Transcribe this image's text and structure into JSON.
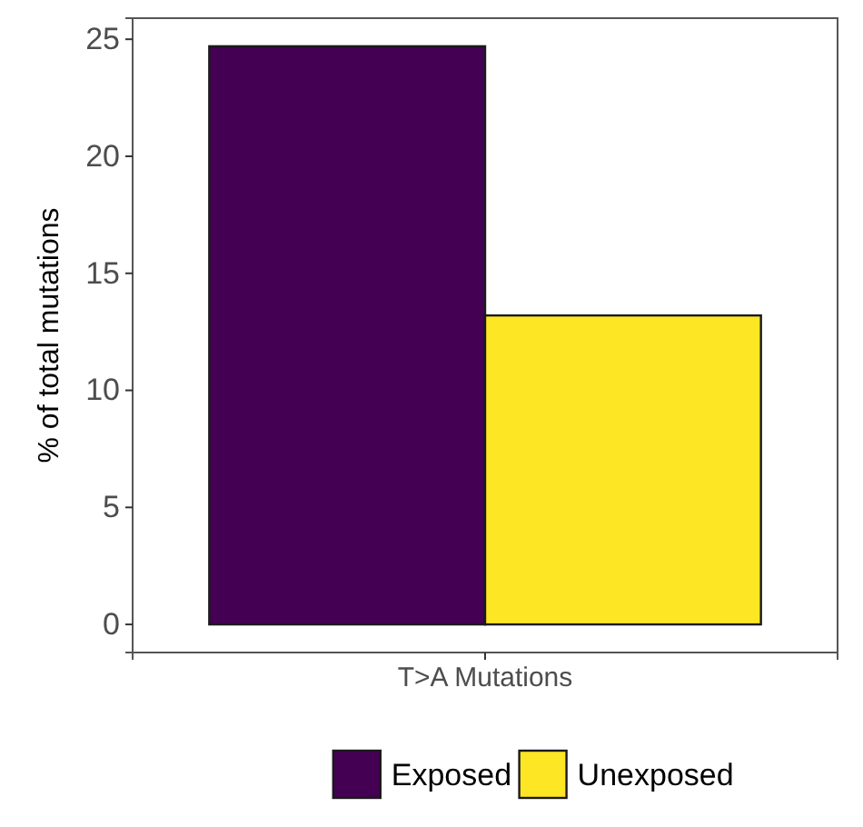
{
  "chart_data": {
    "type": "bar",
    "ylabel": "% of total mutations",
    "categories": [
      "T>A Mutations"
    ],
    "series": [
      {
        "name": "Exposed",
        "color": "#440154",
        "values": [
          24.7
        ]
      },
      {
        "name": "Unexposed",
        "color": "#fde725",
        "values": [
          13.2
        ]
      }
    ],
    "ylim": [
      -1.2,
      25.9
    ],
    "yticks": [
      0,
      5,
      10,
      15,
      20,
      25
    ],
    "grid": false,
    "legend": "bottom"
  }
}
